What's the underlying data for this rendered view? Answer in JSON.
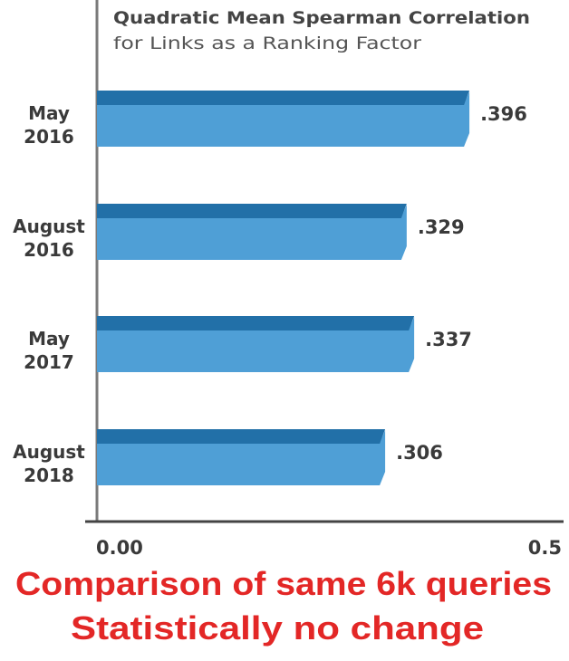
{
  "chart_data": {
    "type": "bar",
    "orientation": "horizontal",
    "title": "Quadratic Mean Spearman Correlation",
    "subtitle": "for Links as a Ranking Factor",
    "categories": [
      [
        "May",
        "2016"
      ],
      [
        "August",
        "2016"
      ],
      [
        "May",
        "2017"
      ],
      [
        "August",
        "2018"
      ]
    ],
    "values": [
      0.396,
      0.329,
      0.337,
      0.306
    ],
    "value_labels": [
      ".396",
      ".329",
      ".337",
      ".306"
    ],
    "xlim": [
      0,
      0.5
    ],
    "x_ticks": [
      "0.00",
      "0.5"
    ],
    "xlabel": "",
    "ylabel": "",
    "grid": false,
    "colors": {
      "bar_face": "#4f9fd6",
      "bar_top": "#2270a8",
      "axis": "#555555"
    }
  },
  "annotations": [
    "Comparison of same 6k queries",
    "Statistically no change"
  ]
}
